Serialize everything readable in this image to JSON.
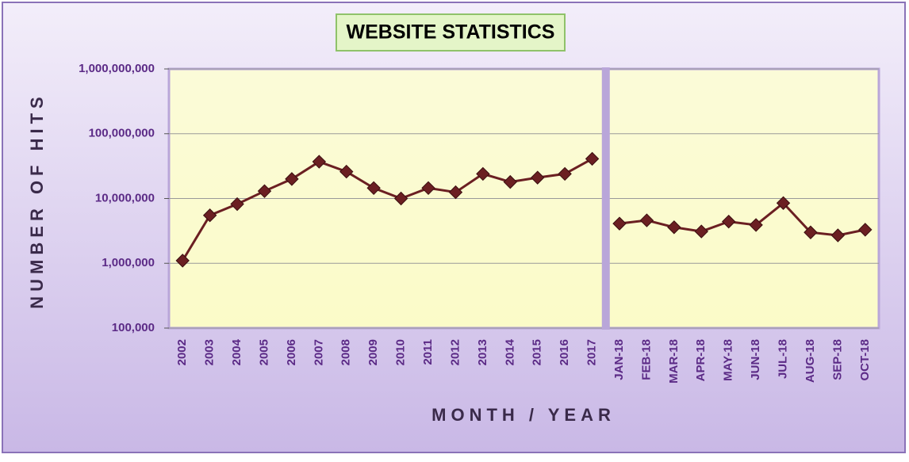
{
  "chart_data": {
    "type": "line",
    "title": "WEBSITE STATISTICS",
    "x_label": "MONTH / YEAR",
    "y_label": "NUMBER OF HITS",
    "categories": [
      "2002",
      "2003",
      "2004",
      "2005",
      "2006",
      "2007",
      "2008",
      "2009",
      "2010",
      "2011",
      "2012",
      "2013",
      "2014",
      "2015",
      "2016",
      "2017",
      "JAN-18",
      "FEB-18",
      "MAR-18",
      "APR-18",
      "MAY-18",
      "JUN-18",
      "JUL-18",
      "AUG-18",
      "SEP-18",
      "OCT-18"
    ],
    "series": [
      {
        "color": "#6b1f22",
        "values": [
          1100000,
          5500000,
          8200000,
          13000000,
          20000000,
          37000000,
          26000000,
          14500000,
          10000000,
          14500000,
          12500000,
          24000000,
          18000000,
          21000000,
          24000000,
          41000000,
          null,
          null,
          null,
          null,
          null,
          null,
          null,
          null,
          null,
          null
        ]
      },
      {
        "color": "#6b1f22",
        "values": [
          null,
          null,
          null,
          null,
          null,
          null,
          null,
          null,
          null,
          null,
          null,
          null,
          null,
          null,
          null,
          null,
          4100000,
          4600000,
          3600000,
          3100000,
          4400000,
          3900000,
          8500000,
          3000000,
          2700000,
          3300000
        ]
      }
    ],
    "ylim": [
      100000,
      1000000000
    ],
    "log_scale": true,
    "grid": true,
    "yticks": [
      {
        "value": 100000,
        "label": "100,000"
      },
      {
        "value": 1000000,
        "label": "1,000,000"
      },
      {
        "value": 10000000,
        "label": "10,000,000"
      },
      {
        "value": 100000000,
        "label": "100,000,000"
      },
      {
        "value": 1000000000,
        "label": "1,000,000,000"
      }
    ]
  }
}
